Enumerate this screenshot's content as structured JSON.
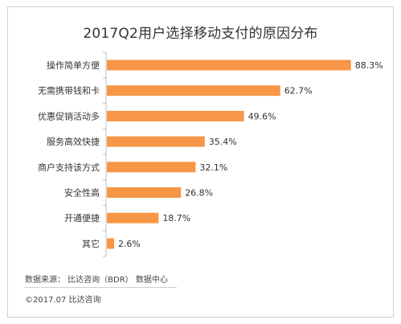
{
  "chart_data": {
    "type": "bar",
    "orientation": "horizontal",
    "title": "2017Q2用户选择移动支付的原因分布",
    "categories": [
      "操作简单方便",
      "无需携带钱和卡",
      "优惠促销活动多",
      "服务高效快捷",
      "商户支持该方式",
      "安全性高",
      "开通便捷",
      "其它"
    ],
    "values": [
      88.3,
      62.7,
      49.6,
      35.4,
      32.1,
      26.8,
      18.7,
      2.6
    ],
    "value_labels": [
      "88.3%",
      "62.7%",
      "49.6%",
      "35.4%",
      "32.1%",
      "26.8%",
      "18.7%",
      "2.6%"
    ],
    "unit": "%",
    "xlim": [
      0,
      100
    ],
    "grid": false,
    "bar_color": "#f79646"
  },
  "footer": {
    "source": "数据来源：  比达咨询（BDR）  数据中心",
    "copyright": "©2017.07  比达咨询"
  }
}
